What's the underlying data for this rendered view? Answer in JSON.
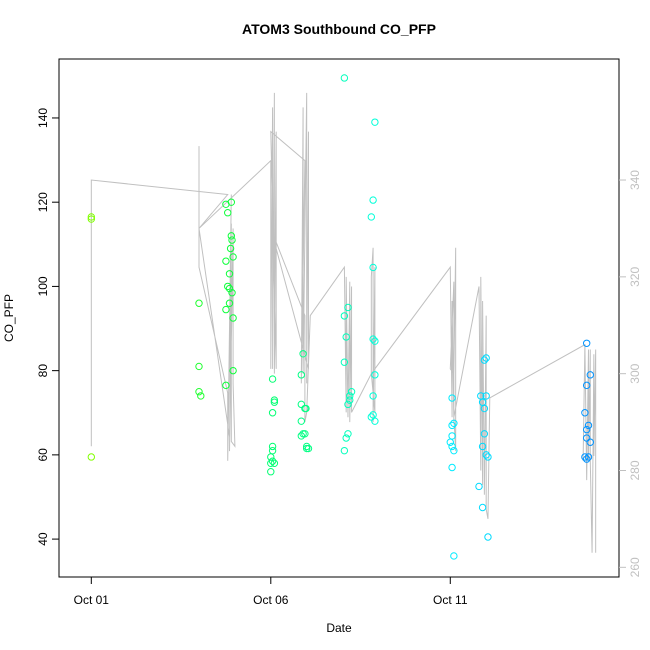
{
  "chart_data": {
    "type": "scatter",
    "title": "ATOM3 Southbound CO_PFP",
    "xlabel": "Date",
    "ylabel": "CO_PFP",
    "x_unit": "days since Oct 01",
    "xlim": [
      -0.9,
      14.7
    ],
    "ylim": [
      31,
      154
    ],
    "y2lim": [
      258,
      365
    ],
    "x_ticks": [
      {
        "value": 0,
        "label": "Oct 01"
      },
      {
        "value": 5,
        "label": "Oct 06"
      },
      {
        "value": 10,
        "label": "Oct 11"
      }
    ],
    "y_ticks": [
      40,
      60,
      80,
      100,
      120,
      140
    ],
    "y2_ticks": [
      260,
      280,
      300,
      320,
      340
    ],
    "grid": false,
    "legend": "none",
    "colors": {
      "line": "#c0c0c0",
      "axis": "#000000",
      "right_axis": "#c0c0c0"
    },
    "series": [
      {
        "type": "points",
        "color_scale": [
          "#80ff00",
          "#00ff40",
          "#00ffff",
          "#0080ff"
        ],
        "points": [
          [
            0.0,
            116.0,
            0.0
          ],
          [
            0.0,
            116.5,
            0.0
          ],
          [
            0.0,
            59.5,
            0.0
          ],
          [
            3.0,
            96.0,
            0.25
          ],
          [
            3.0,
            81.0,
            0.25
          ],
          [
            3.0,
            75.0,
            0.25
          ],
          [
            3.05,
            74.0,
            0.25
          ],
          [
            3.75,
            119.5,
            0.3
          ],
          [
            3.8,
            117.5,
            0.3
          ],
          [
            3.75,
            106.0,
            0.3
          ],
          [
            3.85,
            103.0,
            0.3
          ],
          [
            3.8,
            100.0,
            0.3
          ],
          [
            3.85,
            99.5,
            0.3
          ],
          [
            3.85,
            96.0,
            0.3
          ],
          [
            3.75,
            94.5,
            0.3
          ],
          [
            3.9,
            120.0,
            0.3
          ],
          [
            3.9,
            112.0,
            0.3
          ],
          [
            3.92,
            111.0,
            0.3
          ],
          [
            3.88,
            109.0,
            0.3
          ],
          [
            3.95,
            107.0,
            0.3
          ],
          [
            3.92,
            98.5,
            0.3
          ],
          [
            3.95,
            92.5,
            0.3
          ],
          [
            3.75,
            76.5,
            0.3
          ],
          [
            3.95,
            80.0,
            0.3
          ],
          [
            5.05,
            78.0,
            0.42
          ],
          [
            5.1,
            73.0,
            0.42
          ],
          [
            5.1,
            72.5,
            0.42
          ],
          [
            5.05,
            70.0,
            0.42
          ],
          [
            5.05,
            62.0,
            0.42
          ],
          [
            5.05,
            61.0,
            0.42
          ],
          [
            5.0,
            59.5,
            0.42
          ],
          [
            5.05,
            58.5,
            0.42
          ],
          [
            5.0,
            58.0,
            0.42
          ],
          [
            5.1,
            58.0,
            0.42
          ],
          [
            5.0,
            56.0,
            0.42
          ],
          [
            5.9,
            84.0,
            0.45
          ],
          [
            5.85,
            79.0,
            0.45
          ],
          [
            5.85,
            72.0,
            0.45
          ],
          [
            5.95,
            71.0,
            0.45
          ],
          [
            5.98,
            71.0,
            0.45
          ],
          [
            5.85,
            68.0,
            0.45
          ],
          [
            5.9,
            65.0,
            0.45
          ],
          [
            5.95,
            65.0,
            0.45
          ],
          [
            5.85,
            64.5,
            0.45
          ],
          [
            6.0,
            62.0,
            0.45
          ],
          [
            6.0,
            61.5,
            0.45
          ],
          [
            6.05,
            61.5,
            0.45
          ],
          [
            7.05,
            149.5,
            0.55
          ],
          [
            7.15,
            95.0,
            0.55
          ],
          [
            7.05,
            93.0,
            0.55
          ],
          [
            7.1,
            88.0,
            0.55
          ],
          [
            7.05,
            82.0,
            0.55
          ],
          [
            7.25,
            75.0,
            0.55
          ],
          [
            7.2,
            74.0,
            0.55
          ],
          [
            7.2,
            73.0,
            0.55
          ],
          [
            7.15,
            72.0,
            0.55
          ],
          [
            7.15,
            65.0,
            0.55
          ],
          [
            7.1,
            64.0,
            0.55
          ],
          [
            7.05,
            61.0,
            0.55
          ],
          [
            7.9,
            139.0,
            0.6
          ],
          [
            7.85,
            120.5,
            0.6
          ],
          [
            7.8,
            116.5,
            0.6
          ],
          [
            7.85,
            104.5,
            0.6
          ],
          [
            7.85,
            87.5,
            0.6
          ],
          [
            7.9,
            87.0,
            0.6
          ],
          [
            7.9,
            79.0,
            0.6
          ],
          [
            7.85,
            74.0,
            0.6
          ],
          [
            7.85,
            69.5,
            0.6
          ],
          [
            7.8,
            69.0,
            0.6
          ],
          [
            7.9,
            68.0,
            0.6
          ],
          [
            10.05,
            73.5,
            0.72
          ],
          [
            10.1,
            67.5,
            0.72
          ],
          [
            10.05,
            67.0,
            0.72
          ],
          [
            10.05,
            64.5,
            0.72
          ],
          [
            10.0,
            63.0,
            0.72
          ],
          [
            10.05,
            62.0,
            0.72
          ],
          [
            10.1,
            61.0,
            0.72
          ],
          [
            10.05,
            57.0,
            0.72
          ],
          [
            10.1,
            36.0,
            0.72
          ],
          [
            10.85,
            74.0,
            0.76
          ],
          [
            10.9,
            72.5,
            0.76
          ],
          [
            10.95,
            71.0,
            0.76
          ],
          [
            11.0,
            74.0,
            0.76
          ],
          [
            11.0,
            83.0,
            0.76
          ],
          [
            10.95,
            82.5,
            0.76
          ],
          [
            11.0,
            60.0,
            0.76
          ],
          [
            11.05,
            59.5,
            0.76
          ],
          [
            10.95,
            65.0,
            0.76
          ],
          [
            10.9,
            62.0,
            0.76
          ],
          [
            10.8,
            52.5,
            0.76
          ],
          [
            10.9,
            47.5,
            0.76
          ],
          [
            11.05,
            40.5,
            0.76
          ],
          [
            13.8,
            86.5,
            0.95
          ],
          [
            13.9,
            79.0,
            0.95
          ],
          [
            13.8,
            76.5,
            0.95
          ],
          [
            13.75,
            70.0,
            0.95
          ],
          [
            13.85,
            67.0,
            0.95
          ],
          [
            13.8,
            66.0,
            0.95
          ],
          [
            13.8,
            64.0,
            0.95
          ],
          [
            13.9,
            63.0,
            0.95
          ],
          [
            13.75,
            59.5,
            0.95
          ],
          [
            13.85,
            59.5,
            0.95
          ],
          [
            13.8,
            59.0,
            0.95
          ]
        ]
      },
      {
        "type": "line",
        "axis": "right",
        "points": [
          [
            0.0,
            285.0
          ],
          [
            0.0,
            340.0
          ],
          [
            3.8,
            337.0
          ],
          [
            3.0,
            330.0
          ],
          [
            3.0,
            347.0
          ],
          [
            3.0,
            322.0
          ],
          [
            3.8,
            296.0
          ],
          [
            3.8,
            282.0
          ],
          [
            3.9,
            337.0
          ],
          [
            3.8,
            282.0
          ],
          [
            3.9,
            331.0
          ],
          [
            3.85,
            284.0
          ],
          [
            3.95,
            330.0
          ],
          [
            3.95,
            298.0
          ],
          [
            4.0,
            285.0
          ],
          [
            3.9,
            286.0
          ],
          [
            3.9,
            325.0
          ],
          [
            3.95,
            326.0
          ],
          [
            3.85,
            287.0
          ],
          [
            3.0,
            330.0
          ],
          [
            5.0,
            344.0
          ],
          [
            5.0,
            301.0
          ],
          [
            5.05,
            355.0
          ],
          [
            5.05,
            301.0
          ],
          [
            5.1,
            358.0
          ],
          [
            5.1,
            300.0
          ],
          [
            5.15,
            350.0
          ],
          [
            5.15,
            301.0
          ],
          [
            5.0,
            350.0
          ],
          [
            5.95,
            344.0
          ],
          [
            5.85,
            298.0
          ],
          [
            5.9,
            355.0
          ],
          [
            5.9,
            300.0
          ],
          [
            6.0,
            358.0
          ],
          [
            6.0,
            298.0
          ],
          [
            6.05,
            350.0
          ],
          [
            6.05,
            301.0
          ],
          [
            5.0,
            330.0
          ],
          [
            5.95,
            312.0
          ],
          [
            5.95,
            290.0
          ],
          [
            6.0,
            292.0
          ],
          [
            6.1,
            312.0
          ],
          [
            7.05,
            322.0
          ],
          [
            7.1,
            292.0
          ],
          [
            7.1,
            320.0
          ],
          [
            7.15,
            291.0
          ],
          [
            7.2,
            319.0
          ],
          [
            7.2,
            290.0
          ],
          [
            7.25,
            318.0
          ],
          [
            7.25,
            292.0
          ],
          [
            7.8,
            300.0
          ],
          [
            7.8,
            320.0
          ],
          [
            7.85,
            326.0
          ],
          [
            7.85,
            290.0
          ],
          [
            7.9,
            322.0
          ],
          [
            7.9,
            292.0
          ],
          [
            7.8,
            300.0
          ],
          [
            10.0,
            322.0
          ],
          [
            10.05,
            291.0
          ],
          [
            10.05,
            315.0
          ],
          [
            10.1,
            290.0
          ],
          [
            10.1,
            319.0
          ],
          [
            10.0,
            301.0
          ],
          [
            10.1,
            300.0
          ],
          [
            10.15,
            326.0
          ],
          [
            10.15,
            284.0
          ],
          [
            10.1,
            291.0
          ],
          [
            10.8,
            318.0
          ],
          [
            10.85,
            280.0
          ],
          [
            10.85,
            320.0
          ],
          [
            10.9,
            277.0
          ],
          [
            10.9,
            315.0
          ],
          [
            10.95,
            275.0
          ],
          [
            11.0,
            312.0
          ],
          [
            11.0,
            272.0
          ],
          [
            11.05,
            270.0
          ],
          [
            11.1,
            295.0
          ],
          [
            13.75,
            306.0
          ],
          [
            13.7,
            282.0
          ],
          [
            13.75,
            306.0
          ],
          [
            13.8,
            278.0
          ],
          [
            13.85,
            305.0
          ],
          [
            13.85,
            282.0
          ],
          [
            13.9,
            305.0
          ],
          [
            13.9,
            282.0
          ],
          [
            13.95,
            263.0
          ],
          [
            14.0,
            304.0
          ],
          [
            14.0,
            283.0
          ],
          [
            14.05,
            305.0
          ],
          [
            14.05,
            263.0
          ]
        ]
      }
    ]
  }
}
